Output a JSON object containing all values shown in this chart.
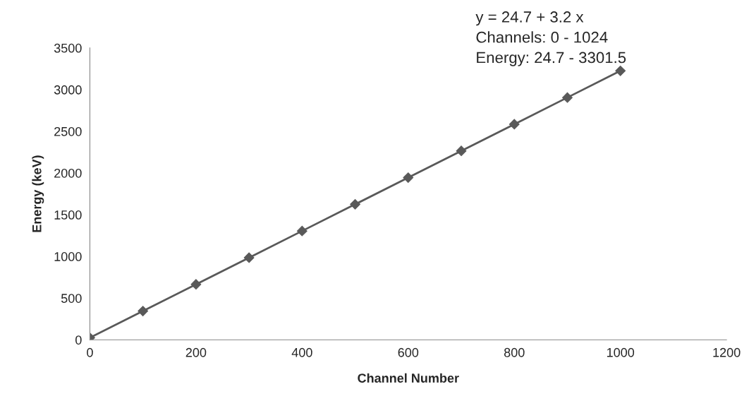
{
  "chart_data": {
    "type": "line",
    "xlabel": "Channel Number",
    "ylabel": "Energy (keV)",
    "annotations": [
      "y = 24.7 + 3.2 x",
      "Channels: 0 - 1024",
      "Energy: 24.7 - 3301.5"
    ],
    "x": [
      0,
      100,
      200,
      300,
      400,
      500,
      600,
      700,
      800,
      900,
      1000
    ],
    "series": [
      {
        "color": "#595959",
        "values": [
          25,
          345,
          665,
          985,
          1305,
          1625,
          1945,
          2265,
          2585,
          2905,
          3225
        ]
      }
    ],
    "xlim": [
      0,
      1200
    ],
    "xticks": [
      0,
      200,
      400,
      600,
      800,
      1000,
      1200
    ],
    "ylim": [
      0,
      3500
    ],
    "yticks": [
      0,
      500,
      1000,
      1500,
      2000,
      2500,
      3000,
      3500
    ],
    "grid": false,
    "marker": "diamond",
    "line_style": "solid"
  }
}
